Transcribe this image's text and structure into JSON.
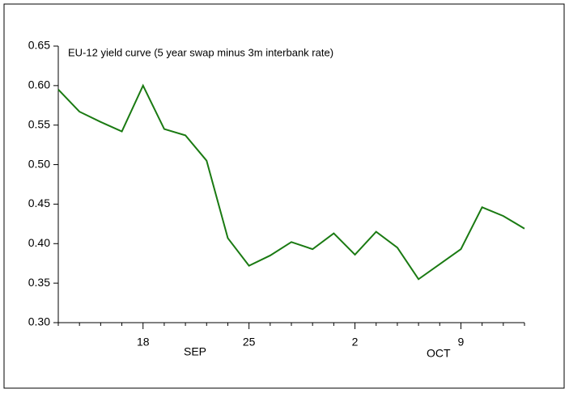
{
  "chart_data": {
    "type": "line",
    "title": "EU-12 yield curve (5 year swap minus 3m interbank rate)",
    "categories": [
      null,
      null,
      null,
      null,
      "18",
      null,
      null,
      null,
      null,
      "25",
      null,
      null,
      null,
      null,
      "2",
      null,
      null,
      null,
      null,
      "9",
      null,
      null,
      null
    ],
    "month_labels": [
      "SEP",
      "OCT"
    ],
    "series": [
      {
        "color": "#1a7a12",
        "values": [
          0.595,
          0.567,
          0.554,
          0.542,
          0.6,
          0.545,
          0.537,
          0.505,
          0.407,
          0.372,
          0.385,
          0.402,
          0.393,
          0.413,
          0.386,
          0.415,
          0.395,
          0.355,
          0.374,
          0.393,
          0.446,
          0.435,
          0.419
        ]
      }
    ],
    "ylim": [
      0.3,
      0.65
    ],
    "yticks": [
      {
        "value": 0.3,
        "label": "0.30"
      },
      {
        "value": 0.35,
        "label": "0.35"
      },
      {
        "value": 0.4,
        "label": "0.40"
      },
      {
        "value": 0.45,
        "label": "0.45"
      },
      {
        "value": 0.5,
        "label": "0.50"
      },
      {
        "value": 0.55,
        "label": "0.55"
      },
      {
        "value": 0.6,
        "label": "0.60"
      },
      {
        "value": 0.65,
        "label": "0.65"
      }
    ],
    "grid": false
  }
}
